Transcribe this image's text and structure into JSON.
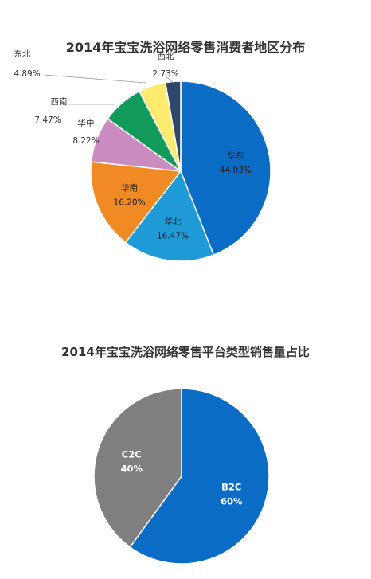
{
  "chart_data": [
    {
      "type": "pie",
      "title": "2014年宝宝洗浴网络零售消费者地区分布",
      "slices": [
        {
          "label": "华东",
          "value": 44.03,
          "value_text": "44.03%",
          "color": "#0A6CC5"
        },
        {
          "label": "华北",
          "value": 16.47,
          "value_text": "16.47%",
          "color": "#1E9AD6"
        },
        {
          "label": "华南",
          "value": 16.2,
          "value_text": "16.20%",
          "color": "#F08A24"
        },
        {
          "label": "华中",
          "value": 8.22,
          "value_text": "8.22%",
          "color": "#C98BC0"
        },
        {
          "label": "西南",
          "value": 7.47,
          "value_text": "7.47%",
          "color": "#129A5B"
        },
        {
          "label": "东北",
          "value": 4.89,
          "value_text": "4.89%",
          "color": "#FCEB6F"
        },
        {
          "label": "西北",
          "value": 2.73,
          "value_text": "2.73%",
          "color": "#2D476D"
        }
      ]
    },
    {
      "type": "pie",
      "title": "2014年宝宝洗浴网络零售平台类型销售量占比",
      "slices": [
        {
          "label": "B2C",
          "value": 60,
          "value_text": "60%",
          "color": "#0A6CC5"
        },
        {
          "label": "C2C",
          "value": 40,
          "value_text": "40%",
          "color": "#7F7F7F"
        }
      ]
    }
  ]
}
